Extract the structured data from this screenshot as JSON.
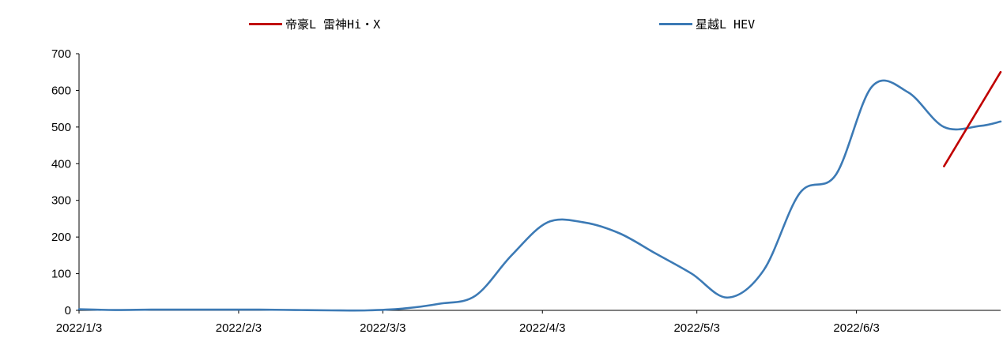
{
  "chart_data": {
    "type": "line",
    "title": "",
    "xlabel": "",
    "ylabel": "",
    "ylim": [
      0,
      700
    ],
    "yticks": [
      0,
      100,
      200,
      300,
      400,
      500,
      600,
      700
    ],
    "xlim": [
      "2022-01-03",
      "2022-07-01"
    ],
    "xticks": [
      {
        "date": "2022-01-03",
        "label": "2022/1/3"
      },
      {
        "date": "2022-02-03",
        "label": "2022/2/3"
      },
      {
        "date": "2022-03-03",
        "label": "2022/3/3"
      },
      {
        "date": "2022-04-03",
        "label": "2022/4/3"
      },
      {
        "date": "2022-05-03",
        "label": "2022/5/3"
      },
      {
        "date": "2022-06-03",
        "label": "2022/6/3"
      }
    ],
    "legend_position": "top",
    "grid": false,
    "series": [
      {
        "name": "帝豪L 雷神Hi・X",
        "color": "#C00000",
        "points": [
          {
            "x": "2022-06-20",
            "y": 393
          },
          {
            "x": "2022-07-01",
            "y": 650
          }
        ]
      },
      {
        "name": "星越L HEV",
        "color": "#3C7AB5",
        "points": [
          {
            "x": "2022-01-03",
            "y": 3
          },
          {
            "x": "2022-01-10",
            "y": 1
          },
          {
            "x": "2022-01-17",
            "y": 2
          },
          {
            "x": "2022-01-24",
            "y": 2
          },
          {
            "x": "2022-01-31",
            "y": 2
          },
          {
            "x": "2022-02-07",
            "y": 2
          },
          {
            "x": "2022-02-14",
            "y": 1
          },
          {
            "x": "2022-02-21",
            "y": 0
          },
          {
            "x": "2022-02-28",
            "y": 0
          },
          {
            "x": "2022-03-07",
            "y": 5
          },
          {
            "x": "2022-03-14",
            "y": 18
          },
          {
            "x": "2022-03-21",
            "y": 40
          },
          {
            "x": "2022-03-28",
            "y": 150
          },
          {
            "x": "2022-04-04",
            "y": 240
          },
          {
            "x": "2022-04-11",
            "y": 240
          },
          {
            "x": "2022-04-18",
            "y": 210
          },
          {
            "x": "2022-04-25",
            "y": 155
          },
          {
            "x": "2022-05-02",
            "y": 100
          },
          {
            "x": "2022-05-09",
            "y": 35
          },
          {
            "x": "2022-05-16",
            "y": 110
          },
          {
            "x": "2022-05-23",
            "y": 320
          },
          {
            "x": "2022-05-30",
            "y": 370
          },
          {
            "x": "2022-06-06",
            "y": 610
          },
          {
            "x": "2022-06-13",
            "y": 595
          },
          {
            "x": "2022-06-20",
            "y": 500
          },
          {
            "x": "2022-06-27",
            "y": 503
          },
          {
            "x": "2022-07-01",
            "y": 515
          }
        ]
      }
    ]
  }
}
